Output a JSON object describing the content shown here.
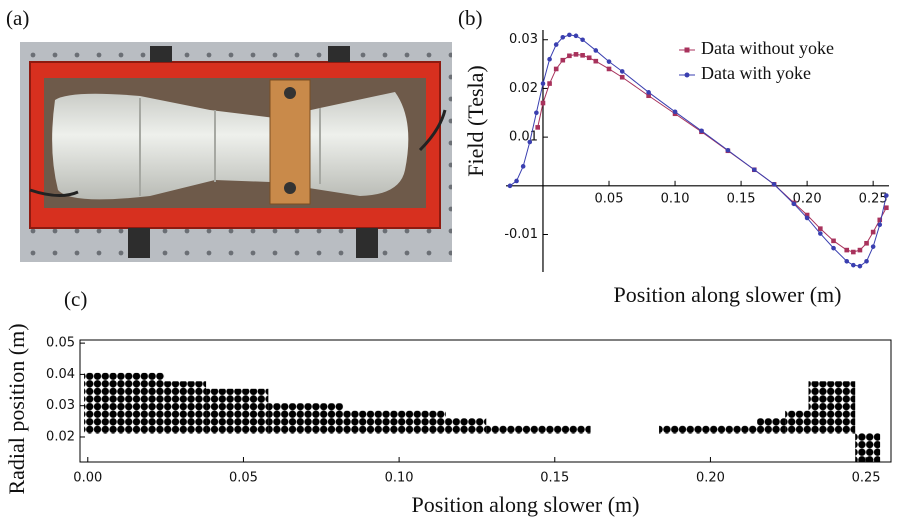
{
  "photo": {
    "label": "(a)"
  },
  "chart_data": [
    {
      "type": "line",
      "label": "(b)",
      "ylabel": "Field (Tesla)",
      "xlabel": "Position along slower (m)",
      "xlim": [
        -0.028,
        0.262
      ],
      "ylim": [
        -0.0177,
        0.032
      ],
      "xticks": [
        0.05,
        {
          "value": 0.1,
          "label": "0.10"
        },
        0.15,
        {
          "value": 0.2,
          "label": "0.20"
        },
        0.25
      ],
      "yticks": [
        0.03,
        0.02,
        0.01,
        -0.01
      ],
      "legend": "upper right",
      "series": [
        {
          "name": "Data without yoke",
          "color": "#a8325c",
          "marker": "square",
          "x": [
            -0.004,
            0,
            0.005,
            0.01,
            0.015,
            0.02,
            0.025,
            0.03,
            0.035,
            0.04,
            0.05,
            0.06,
            0.08,
            0.1,
            0.12,
            0.14,
            0.16,
            0.175,
            0.19,
            0.2,
            0.21,
            0.22,
            0.23,
            0.235,
            0.24,
            0.245,
            0.25,
            0.255,
            0.26
          ],
          "values": [
            0.012,
            0.017,
            0.021,
            0.024,
            0.0258,
            0.0267,
            0.027,
            0.0268,
            0.0263,
            0.0256,
            0.024,
            0.0223,
            0.0185,
            0.0148,
            0.0111,
            0.0072,
            0.0033,
            0.0003,
            -0.0035,
            -0.006,
            -0.0088,
            -0.0113,
            -0.0132,
            -0.0136,
            -0.0132,
            -0.0118,
            -0.0095,
            -0.007,
            -0.0045
          ]
        },
        {
          "name": "Data with yoke",
          "color": "#3a3fb0",
          "marker": "circle",
          "x": [
            -0.025,
            -0.02,
            -0.015,
            -0.01,
            -0.005,
            0,
            0.005,
            0.01,
            0.015,
            0.02,
            0.025,
            0.03,
            0.04,
            0.05,
            0.06,
            0.08,
            0.1,
            0.12,
            0.14,
            0.16,
            0.175,
            0.19,
            0.2,
            0.21,
            0.22,
            0.23,
            0.235,
            0.24,
            0.245,
            0.25,
            0.255,
            0.26
          ],
          "values": [
            0.0,
            0.001,
            0.004,
            0.009,
            0.015,
            0.021,
            0.026,
            0.029,
            0.0305,
            0.031,
            0.0308,
            0.03,
            0.0278,
            0.0255,
            0.0235,
            0.0192,
            0.0152,
            0.0113,
            0.0073,
            0.0033,
            0.0003,
            -0.0037,
            -0.0066,
            -0.0098,
            -0.0128,
            -0.0155,
            -0.0163,
            -0.0165,
            -0.0155,
            -0.0125,
            -0.008,
            -0.002
          ]
        }
      ]
    },
    {
      "type": "range",
      "label": "(c)",
      "ylabel": "Radial position (m)",
      "xlabel": "Position along slower (m)",
      "xlim": [
        -0.0025,
        0.258
      ],
      "ylim": [
        0.012,
        0.051
      ],
      "xticks": [
        {
          "value": 0,
          "label": "0.00"
        },
        0.05,
        {
          "value": 0.1,
          "label": "0.10"
        },
        0.15,
        {
          "value": 0.2,
          "label": "0.20"
        },
        0.25
      ],
      "yticks": [
        0.02,
        0.03,
        0.04,
        0.05
      ],
      "color": "#000000",
      "segments": [
        {
          "x_start": -0.0012,
          "x_end": 0.0245,
          "y_low": 0.021,
          "y_high": 0.0405
        },
        {
          "x_start": 0.0245,
          "x_end": 0.038,
          "y_low": 0.021,
          "y_high": 0.0378
        },
        {
          "x_start": 0.038,
          "x_end": 0.058,
          "y_low": 0.021,
          "y_high": 0.0354
        },
        {
          "x_start": 0.058,
          "x_end": 0.082,
          "y_low": 0.021,
          "y_high": 0.0308
        },
        {
          "x_start": 0.082,
          "x_end": 0.115,
          "y_low": 0.021,
          "y_high": 0.0284
        },
        {
          "x_start": 0.115,
          "x_end": 0.128,
          "y_low": 0.021,
          "y_high": 0.026
        },
        {
          "x_start": 0.128,
          "x_end": 0.1615,
          "y_low": 0.021,
          "y_high": 0.0236
        },
        {
          "x_start": 0.1835,
          "x_end": 0.215,
          "y_low": 0.021,
          "y_high": 0.0236
        },
        {
          "x_start": 0.215,
          "x_end": 0.224,
          "y_low": 0.021,
          "y_high": 0.026
        },
        {
          "x_start": 0.224,
          "x_end": 0.2315,
          "y_low": 0.021,
          "y_high": 0.0284
        },
        {
          "x_start": 0.2315,
          "x_end": 0.2465,
          "y_low": 0.021,
          "y_high": 0.0378
        },
        {
          "x_start": 0.2465,
          "x_end": 0.2545,
          "y_low": 0.0121,
          "y_high": 0.0212
        }
      ]
    }
  ]
}
